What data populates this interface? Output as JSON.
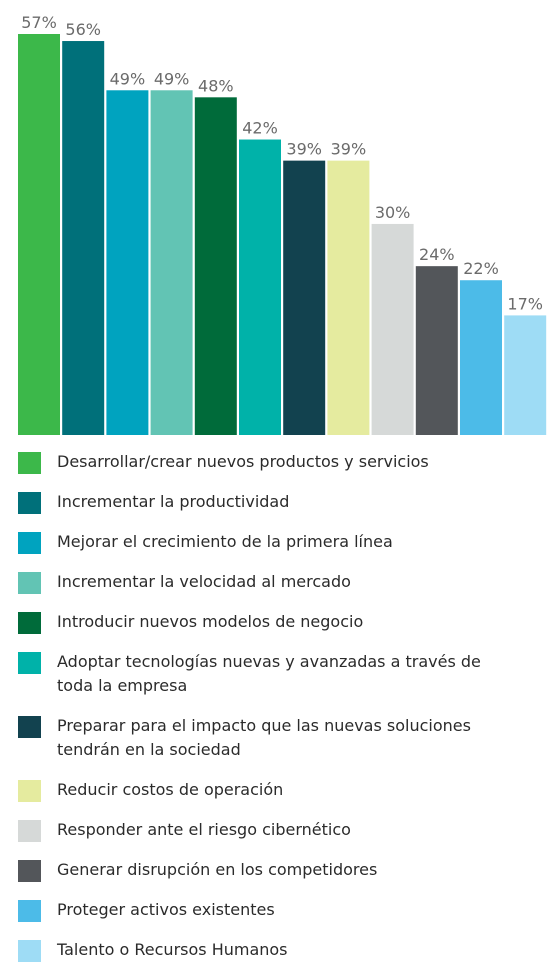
{
  "chart_data": {
    "type": "bar",
    "categories": [
      "Desarrollar/crear nuevos productos y servicios",
      "Incrementar la productividad",
      "Mejorar el crecimiento de la primera línea",
      "Incrementar la velocidad al mercado",
      "Introducir nuevos modelos de negocio",
      "Adoptar tecnologías nuevas y avanzadas a través de toda la empresa",
      "Preparar para el impacto que las nuevas soluciones tendrán en la sociedad",
      "Reducir costos de operación",
      "Responder ante el riesgo cibernético",
      "Generar disrupción en los competidores",
      "Proteger activos existentes",
      "Talento o Recursos Humanos"
    ],
    "values": [
      57,
      56,
      49,
      49,
      48,
      42,
      39,
      39,
      30,
      24,
      22,
      17
    ],
    "value_labels": [
      "57%",
      "56%",
      "49%",
      "49%",
      "48%",
      "42%",
      "39%",
      "39%",
      "30%",
      "24%",
      "22%",
      "17%"
    ],
    "colors": [
      "#3cb84a",
      "#00707a",
      "#00a3bf",
      "#62c4b4",
      "#006b3a",
      "#00b2a9",
      "#12424f",
      "#e5eb9f",
      "#d6d9d8",
      "#53565a",
      "#4cbbe8",
      "#9edcf5"
    ]
  }
}
